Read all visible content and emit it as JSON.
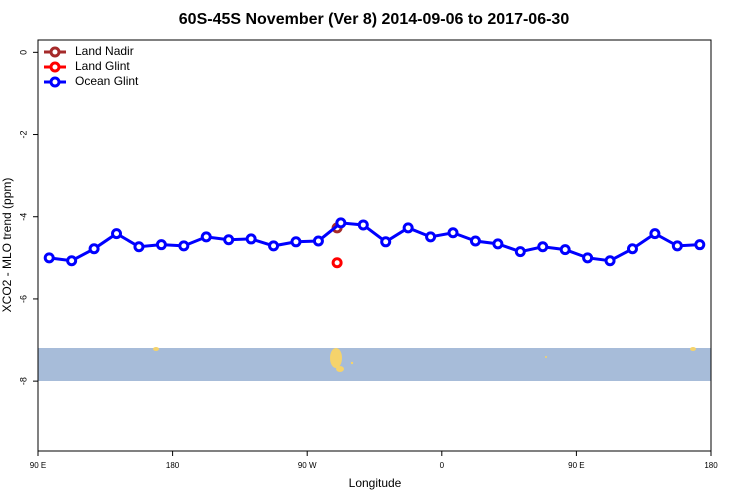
{
  "chart_data": {
    "type": "line",
    "title": "60S-45S November (Ver 8)   2014-09-06 to 2017-06-30",
    "x_label": "Longitude",
    "y_label": "XCO2 - MLO trend (ppm)",
    "xlim": [
      90,
      540
    ],
    "xticks": [
      {
        "value": 90,
        "label": "90 E"
      },
      {
        "value": 180,
        "label": "180"
      },
      {
        "value": 270,
        "label": "90 W"
      },
      {
        "value": 360,
        "label": "0"
      },
      {
        "value": 450,
        "label": "90 E"
      },
      {
        "value": 540,
        "label": "180"
      }
    ],
    "ylim": [
      -9.7,
      0.3
    ],
    "yticks": [
      0,
      -2,
      -4,
      -6,
      -8
    ],
    "legend": "top-left",
    "series": [
      {
        "name": "Land Nadir",
        "color": "#a52a2a",
        "x": [
          290
        ],
        "values": [
          -4.27
        ]
      },
      {
        "name": "Land Glint",
        "color": "#ff0000",
        "x": [
          290
        ],
        "values": [
          -5.12
        ]
      },
      {
        "name": "Ocean Glint",
        "color": "#0000ff",
        "x": [
          97.5,
          112.5,
          127.5,
          142.5,
          157.5,
          172.5,
          187.5,
          202.5,
          217.5,
          232.5,
          247.5,
          262.5,
          277.5,
          292.5,
          307.5,
          322.5,
          337.5,
          352.5,
          367.5,
          382.5,
          397.5,
          412.5,
          427.5,
          442.5,
          457.5,
          472.5,
          487.5,
          502.5,
          517.5,
          532.5
        ],
        "values": [
          -5.0,
          -5.07,
          -4.78,
          -4.41,
          -4.73,
          -4.68,
          -4.71,
          -4.49,
          -4.56,
          -4.54,
          -4.71,
          -4.61,
          -4.59,
          -4.15,
          -4.2,
          -4.61,
          -4.27,
          -4.49,
          -4.39,
          -4.59,
          -4.66,
          -4.85,
          -4.73,
          -4.8,
          -5.0,
          -5.07,
          -4.78,
          -4.41,
          -4.71,
          -4.68
        ]
      }
    ]
  }
}
